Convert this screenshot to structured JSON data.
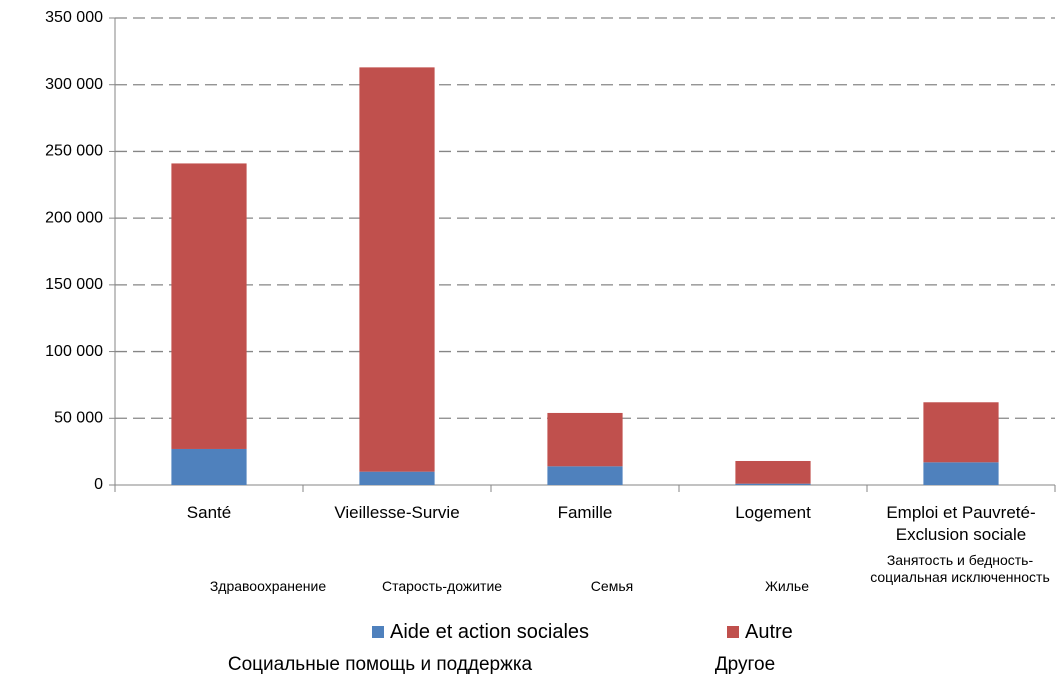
{
  "chart_data": {
    "type": "bar",
    "stacked": true,
    "categories": [
      "Santé",
      "Vieillesse-Survie",
      "Famille",
      "Logement",
      "Emploi et Pauvreté-Exclusion sociale"
    ],
    "series": [
      {
        "name": "Aide et action sociales",
        "color": "#4f81bd",
        "values": [
          27000,
          10000,
          14000,
          1000,
          17000
        ]
      },
      {
        "name": "Autre",
        "color": "#c0504d",
        "values": [
          214000,
          303000,
          40000,
          17000,
          45000
        ]
      }
    ],
    "ylim": [
      0,
      350000
    ],
    "yticks": [
      0,
      {
        "value": 50000,
        "label": "50 000"
      },
      {
        "value": 100000,
        "label": "100 000"
      },
      {
        "value": 150000,
        "label": "150 000"
      },
      {
        "value": 200000,
        "label": "200 000"
      },
      {
        "value": 250000,
        "label": "250 000"
      },
      {
        "value": 300000,
        "label": "300 000"
      },
      {
        "value": 350000,
        "label": "350 000"
      }
    ],
    "grid": true,
    "legend": "bottom",
    "category_translations": [
      "Здравоохранение",
      "Старость-дожитие",
      "Семья",
      "Жилье",
      "Занятость и бедность-социальная исключенность"
    ],
    "legend_translations": [
      "Социальные помощь и поддержка",
      "Другое"
    ]
  }
}
